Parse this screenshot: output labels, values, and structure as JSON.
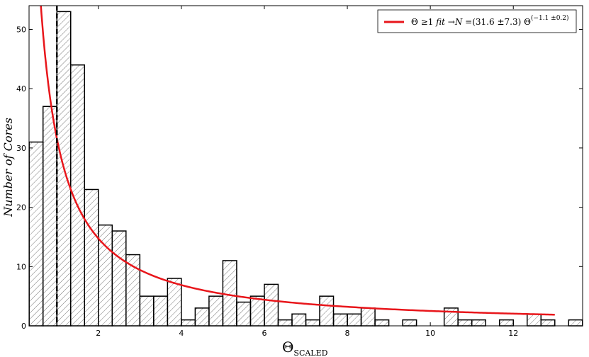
{
  "chart_data": {
    "type": "bar",
    "bin_width": 0.3333,
    "bins": [
      {
        "x0": 0.3333,
        "count": 31
      },
      {
        "x0": 0.6667,
        "count": 37
      },
      {
        "x0": 1.0,
        "count": 53
      },
      {
        "x0": 1.3333,
        "count": 44
      },
      {
        "x0": 1.6667,
        "count": 23
      },
      {
        "x0": 2.0,
        "count": 17
      },
      {
        "x0": 2.3333,
        "count": 16
      },
      {
        "x0": 2.6667,
        "count": 12
      },
      {
        "x0": 3.0,
        "count": 5
      },
      {
        "x0": 3.3333,
        "count": 5
      },
      {
        "x0": 3.6667,
        "count": 8
      },
      {
        "x0": 4.0,
        "count": 1
      },
      {
        "x0": 4.3333,
        "count": 3
      },
      {
        "x0": 4.6667,
        "count": 5
      },
      {
        "x0": 5.0,
        "count": 11
      },
      {
        "x0": 5.3333,
        "count": 4
      },
      {
        "x0": 5.6667,
        "count": 5
      },
      {
        "x0": 6.0,
        "count": 7
      },
      {
        "x0": 6.3333,
        "count": 1
      },
      {
        "x0": 6.6667,
        "count": 2
      },
      {
        "x0": 7.0,
        "count": 1
      },
      {
        "x0": 7.3333,
        "count": 5
      },
      {
        "x0": 7.6667,
        "count": 2
      },
      {
        "x0": 8.0,
        "count": 2
      },
      {
        "x0": 8.3333,
        "count": 3
      },
      {
        "x0": 8.6667,
        "count": 1
      },
      {
        "x0": 9.0,
        "count": 0
      },
      {
        "x0": 9.3333,
        "count": 1
      },
      {
        "x0": 9.6667,
        "count": 0
      },
      {
        "x0": 10.0,
        "count": 0
      },
      {
        "x0": 10.3333,
        "count": 3
      },
      {
        "x0": 10.6667,
        "count": 1
      },
      {
        "x0": 11.0,
        "count": 1
      },
      {
        "x0": 11.3333,
        "count": 0
      },
      {
        "x0": 11.6667,
        "count": 1
      },
      {
        "x0": 12.0,
        "count": 0
      },
      {
        "x0": 12.3333,
        "count": 2
      },
      {
        "x0": 12.6667,
        "count": 1
      },
      {
        "x0": 13.0,
        "count": 0
      },
      {
        "x0": 13.3333,
        "count": 1
      }
    ],
    "fit": {
      "amplitude": 31.6,
      "exponent": -1.1,
      "x_start": 0.42,
      "x_end": 13.0
    },
    "vline_x": 1.0,
    "xlim": [
      0.33,
      13.67
    ],
    "ylim": [
      0,
      54
    ],
    "xticks": [
      2,
      4,
      6,
      8,
      10,
      12
    ],
    "yticks": [
      0,
      10,
      20,
      30,
      40,
      50
    ],
    "xlabel": "Θ",
    "xlabel_sub": "SCALED",
    "ylabel": "Number of Cores",
    "legend": {
      "label_prefix": "Θ ≥1 ",
      "label_fit": "fit",
      "label_arrow": " →",
      "label_N": "N",
      "label_eq": " =(31.6 ±7.3) Θ",
      "label_exp": "(−1.1 ±0.2)",
      "placement": "top-right"
    },
    "colors": {
      "fit": "#e8161b",
      "bars": "#000000",
      "vline": "#000000"
    }
  }
}
